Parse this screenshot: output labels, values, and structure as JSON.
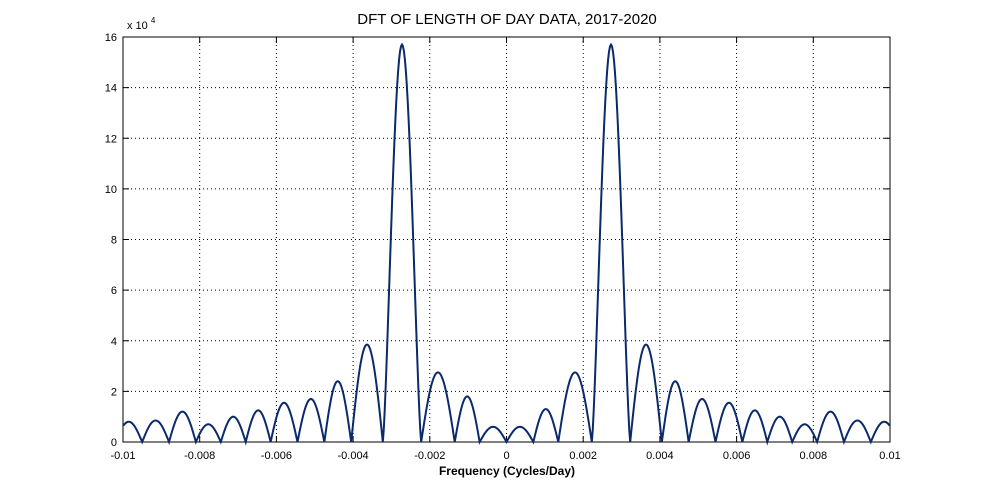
{
  "chart_data": {
    "type": "line",
    "title": "DFT OF LENGTH OF DAY DATA, 2017-2020",
    "xlabel": "Frequency (Cycles/Day)",
    "ylabel": "",
    "y_multiplier_label": "x 10",
    "y_multiplier_exponent": "4",
    "xlim": [
      -0.01,
      0.01
    ],
    "ylim": [
      0,
      16
    ],
    "grid": true,
    "x_ticks": [
      -0.01,
      -0.008,
      -0.006,
      -0.004,
      -0.002,
      0,
      0.002,
      0.004,
      0.006,
      0.008,
      0.01
    ],
    "x_tick_labels": [
      "-0.01",
      "-0.008",
      "-0.006",
      "-0.004",
      "-0.002",
      "0",
      "0.002",
      "0.004",
      "0.006",
      "0.008",
      "0.01"
    ],
    "y_ticks": [
      0,
      2,
      4,
      6,
      8,
      10,
      12,
      14,
      16
    ],
    "y_tick_labels": [
      "0",
      "2",
      "4",
      "6",
      "8",
      "10",
      "12",
      "14",
      "16"
    ],
    "series": [
      {
        "color": "#0b2a6b",
        "main_lobe_peaks": [
          {
            "x": -0.00275,
            "y": 15.7
          },
          {
            "x": 0.00275,
            "y": 15.7
          }
        ],
        "side_lobe_peaks": [
          {
            "x": -0.0098,
            "y": 0.8
          },
          {
            "x": -0.0092,
            "y": 0.85
          },
          {
            "x": -0.0084,
            "y": 1.2
          },
          {
            "x": -0.0078,
            "y": 0.7
          },
          {
            "x": -0.0071,
            "y": 1.0
          },
          {
            "x": -0.0065,
            "y": 1.25
          },
          {
            "x": -0.0058,
            "y": 1.55
          },
          {
            "x": -0.0051,
            "y": 1.7
          },
          {
            "x": -0.0044,
            "y": 2.4
          },
          {
            "x": -0.0037,
            "y": 3.85
          },
          {
            "x": -0.0017,
            "y": 2.75
          },
          {
            "x": -0.001,
            "y": 1.8
          },
          {
            "x": -0.0004,
            "y": 0.6
          },
          {
            "x": 0.0004,
            "y": 0.6
          },
          {
            "x": 0.001,
            "y": 1.3
          },
          {
            "x": 0.0017,
            "y": 2.75
          },
          {
            "x": 0.0037,
            "y": 3.85
          },
          {
            "x": 0.0044,
            "y": 2.4
          },
          {
            "x": 0.0051,
            "y": 1.7
          },
          {
            "x": 0.0058,
            "y": 1.55
          },
          {
            "x": 0.0065,
            "y": 1.25
          },
          {
            "x": 0.0071,
            "y": 1.0
          },
          {
            "x": 0.0078,
            "y": 0.7
          },
          {
            "x": 0.0084,
            "y": 1.2
          },
          {
            "x": 0.0092,
            "y": 0.85
          },
          {
            "x": 0.0098,
            "y": 0.8
          }
        ]
      }
    ]
  }
}
